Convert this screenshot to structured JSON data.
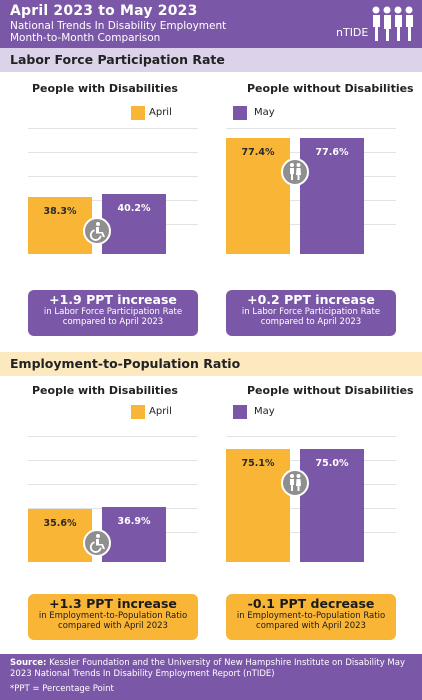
{
  "header": {
    "title": "April 2023 to May 2023",
    "subtitle_line1": "National Trends In Disability Employment",
    "subtitle_line2": "Month-to-Month Comparison",
    "logo_text": "nTIDE"
  },
  "colors": {
    "april": "#f9b535",
    "may": "#7b57a7"
  },
  "chart_data": [
    {
      "type": "bar",
      "title": "Labor Force Participation Rate",
      "subtitle": "People with Disabilities",
      "categories": [
        "April",
        "May"
      ],
      "values": [
        38.3,
        40.2
      ],
      "value_labels": [
        "38.3%",
        "40.2%"
      ],
      "icon": "wheelchair-icon",
      "callout": {
        "headline": "+1.9 PPT increase",
        "line1": "in Labor Force Participation Rate",
        "line2": "compared to April 2023"
      }
    },
    {
      "type": "bar",
      "title": "Labor Force Participation Rate",
      "subtitle": "People without Disabilities",
      "categories": [
        "April",
        "May"
      ],
      "values": [
        77.4,
        77.6
      ],
      "value_labels": [
        "77.4%",
        "77.6%"
      ],
      "icon": "people-icon",
      "callout": {
        "headline": "+0.2 PPT increase",
        "line1": "in Labor Force Participation Rate",
        "line2": "compared to April 2023"
      }
    },
    {
      "type": "bar",
      "title": "Employment-to-Population Ratio",
      "subtitle": "People with Disabilities",
      "categories": [
        "April",
        "May"
      ],
      "values": [
        35.6,
        36.9
      ],
      "value_labels": [
        "35.6%",
        "36.9%"
      ],
      "icon": "wheelchair-icon",
      "callout": {
        "headline": "+1.3 PPT increase",
        "line1": "in Employment-to-Population Ratio",
        "line2": "compared with April 2023"
      }
    },
    {
      "type": "bar",
      "title": "Employment-to-Population Ratio",
      "subtitle": "People without Disabilities",
      "categories": [
        "April",
        "May"
      ],
      "values": [
        75.1,
        75.0
      ],
      "value_labels": [
        "75.1%",
        "75.0%"
      ],
      "icon": "people-icon",
      "callout": {
        "headline": "-0.1 PPT decrease",
        "line1": "in Employment-to-Population Ratio",
        "line2": "compared with April 2023"
      }
    }
  ],
  "sections": {
    "lfpr": {
      "title": "Labor Force Participation Rate",
      "left_group": "People with Disabilities",
      "right_group": "People without Disabilities"
    },
    "epop": {
      "title": "Employment-to-Population Ratio",
      "left_group": "People with Disabilities",
      "right_group": "People without Disabilities"
    }
  },
  "legend": {
    "april": "April",
    "may": "May"
  },
  "footer": {
    "source_label": "Source:",
    "source_text": "Kessler Foundation and the University of New Hampshire Institute on Disability May 2023 National Trends In Disability Employment Report (nTIDE)",
    "ppt_note": "*PPT = Percentage Point"
  }
}
